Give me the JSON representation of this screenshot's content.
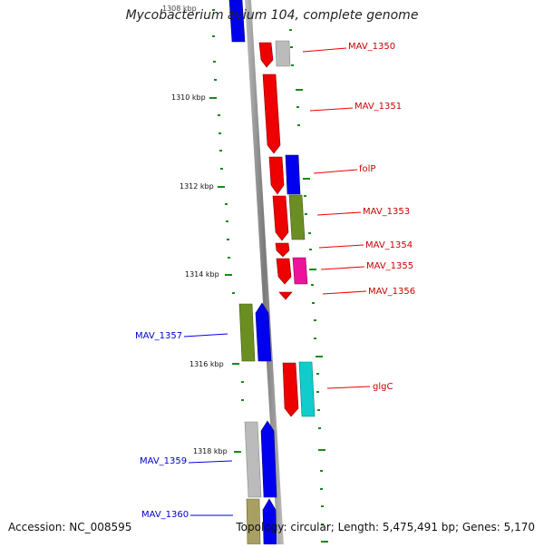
{
  "title": "Mycobacterium avium 104, complete genome",
  "footer": {
    "accession": "Accession: NC_008595",
    "summary": "Topology: circular; Length: 5,475,491 bp; Genes: 5,170"
  },
  "ruler": {
    "ticks": [
      "1308 kbp",
      "1310 kbp",
      "1312 kbp",
      "1314 kbp",
      "1316 kbp",
      "1318 kbp"
    ]
  },
  "genes": {
    "MAV_1350": "MAV_1350",
    "MAV_1351": "MAV_1351",
    "folP": "folP",
    "MAV_1353": "MAV_1353",
    "MAV_1354": "MAV_1354",
    "MAV_1355": "MAV_1355",
    "MAV_1356": "MAV_1356",
    "MAV_1357": "MAV_1357",
    "glgC": "glgC",
    "MAV_1359": "MAV_1359",
    "MAV_1360": "MAV_1360"
  },
  "colors": {
    "red": "#ee0000",
    "blue": "#0000ee",
    "olive": "#6b8e23",
    "gray": "#bbbbbb",
    "magenta": "#ee1199",
    "cyan": "#11cccc",
    "khaki": "#a8a060",
    "tick": "#1a8a1a",
    "axis": "#888888"
  }
}
